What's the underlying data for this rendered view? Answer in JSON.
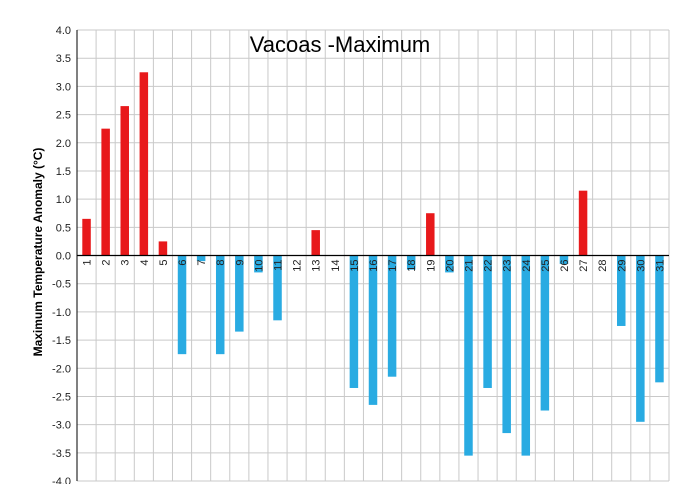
{
  "chart_data": {
    "type": "bar",
    "title": "Vacoas -Maximum",
    "xlabel": "",
    "ylabel": "Maximum    Temperature Anomaly  (°C)",
    "ylim": [
      -4.0,
      4.0
    ],
    "ytick_step": 0.5,
    "grid": true,
    "legend": "none",
    "categories": [
      "1",
      "2",
      "3",
      "4",
      "5",
      "6",
      "7",
      "8",
      "9",
      "10",
      "11",
      "12",
      "13",
      "14",
      "15",
      "16",
      "17",
      "18",
      "19",
      "20",
      "21",
      "22",
      "23",
      "24",
      "25",
      "26",
      "27",
      "28",
      "29",
      "30",
      "31"
    ],
    "values": [
      0.65,
      2.25,
      2.65,
      3.25,
      0.25,
      -1.75,
      -0.1,
      -1.75,
      -1.35,
      -0.3,
      -1.15,
      0,
      0.45,
      0,
      -2.35,
      -2.65,
      -2.15,
      -0.25,
      0.75,
      -0.3,
      -3.55,
      -2.35,
      -3.15,
      -3.55,
      -2.75,
      -0.15,
      1.15,
      0,
      -1.25,
      -2.95,
      -2.25
    ],
    "colors": {
      "positive": "#e8191b",
      "negative": "#29abe2",
      "grid": "#c9c9c9",
      "axis": "#000000"
    }
  }
}
